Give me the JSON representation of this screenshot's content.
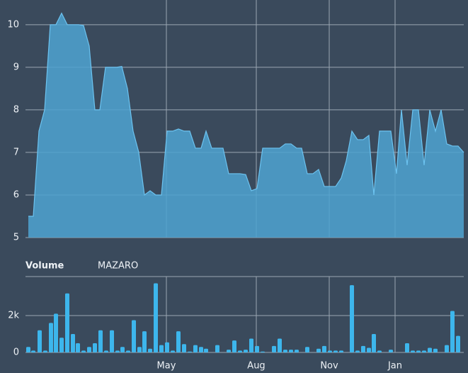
{
  "chart_data": [
    {
      "type": "area",
      "color": "#4fa3d1",
      "line_color": "#6cc3f0",
      "x": [
        0,
        7,
        15,
        23,
        31,
        39,
        47,
        55,
        63,
        71,
        78,
        86,
        94,
        101,
        109,
        117,
        125,
        132,
        140,
        148,
        156,
        164,
        172,
        180,
        188,
        196,
        204,
        212,
        220,
        228,
        236,
        244,
        251,
        259,
        267,
        275,
        283,
        291,
        299,
        307,
        315,
        323,
        331,
        339,
        347,
        355,
        363,
        371,
        379,
        386,
        394,
        402,
        410,
        418,
        426,
        434,
        442,
        449,
        457,
        465,
        473,
        481,
        488,
        496,
        504,
        512,
        520,
        527,
        535,
        543,
        551,
        559,
        567,
        575,
        583,
        591,
        599,
        607,
        615
      ],
      "values": [
        5.5,
        5.5,
        7.5,
        8,
        10,
        10,
        10.27,
        10,
        10,
        10,
        9.98,
        9.5,
        8,
        8,
        9,
        9,
        9,
        9.02,
        8.5,
        7.5,
        7,
        6,
        6.1,
        6,
        6,
        7.5,
        7.5,
        7.55,
        7.5,
        7.5,
        7.1,
        7.1,
        7.5,
        7.1,
        7.1,
        7.1,
        6.5,
        6.5,
        6.5,
        6.48,
        6.1,
        6.15,
        7.1,
        7.1,
        7.1,
        7.1,
        7.2,
        7.2,
        7.1,
        7.1,
        6.5,
        6.5,
        6.6,
        6.2,
        6.2,
        6.2,
        6.4,
        6.8,
        7.5,
        7.3,
        7.3,
        7.4,
        6,
        7.5,
        7.5,
        7.5,
        6.5,
        8,
        6.7,
        8,
        8,
        6.7,
        8,
        7.5,
        8,
        7.2,
        7.15,
        7.15,
        7
      ],
      "xlim": [
        0,
        615
      ],
      "ylim": [
        5,
        10.58
      ],
      "yticks": [
        5,
        6,
        7,
        8,
        9,
        10
      ],
      "grid": true
    },
    {
      "type": "bar",
      "title": "Volume",
      "series": [
        {
          "name": "MAZARO",
          "color": "#3db6ec",
          "values": [
            300,
            100,
            1200,
            100,
            1600,
            2100,
            800,
            3200,
            1000,
            500,
            100,
            300,
            500,
            1200,
            100,
            1200,
            100,
            300,
            100,
            1750,
            300,
            1150,
            200,
            3750,
            400,
            550,
            100,
            1150,
            450,
            50,
            400,
            300,
            200,
            400,
            150,
            650,
            100,
            150,
            750,
            350,
            50,
            350,
            750,
            150,
            150,
            150,
            300,
            200,
            350,
            100,
            100,
            100,
            3650,
            100,
            350,
            250,
            1000,
            100,
            150,
            500,
            100,
            100,
            100,
            250,
            200,
            400,
            2250,
            900
          ]
        }
      ],
      "x": [
        0,
        7,
        16,
        24,
        32,
        39,
        47,
        55,
        63,
        70,
        78,
        86,
        94,
        102,
        110,
        118,
        126,
        133,
        141,
        149,
        157,
        164,
        172,
        180,
        188,
        196,
        204,
        212,
        220,
        228,
        236,
        244,
        251,
        267,
        283,
        291,
        299,
        307,
        315,
        323,
        331,
        347,
        355,
        363,
        371,
        379,
        394,
        410,
        418,
        426,
        434,
        442,
        457,
        465,
        473,
        481,
        488,
        496,
        512,
        535,
        543,
        551,
        559,
        567,
        575,
        591,
        599,
        607
      ],
      "xlim": [
        0,
        615
      ],
      "ylim": [
        0,
        4115
      ],
      "yticks": [
        0,
        {
          "value": 2000,
          "label": "2k"
        }
      ],
      "xticks": [
        {
          "value": 195,
          "label": "May"
        },
        {
          "value": 322,
          "label": "Aug"
        },
        {
          "value": 425,
          "label": "Nov"
        },
        {
          "value": 518,
          "label": "Jan"
        }
      ],
      "grid": true
    }
  ]
}
